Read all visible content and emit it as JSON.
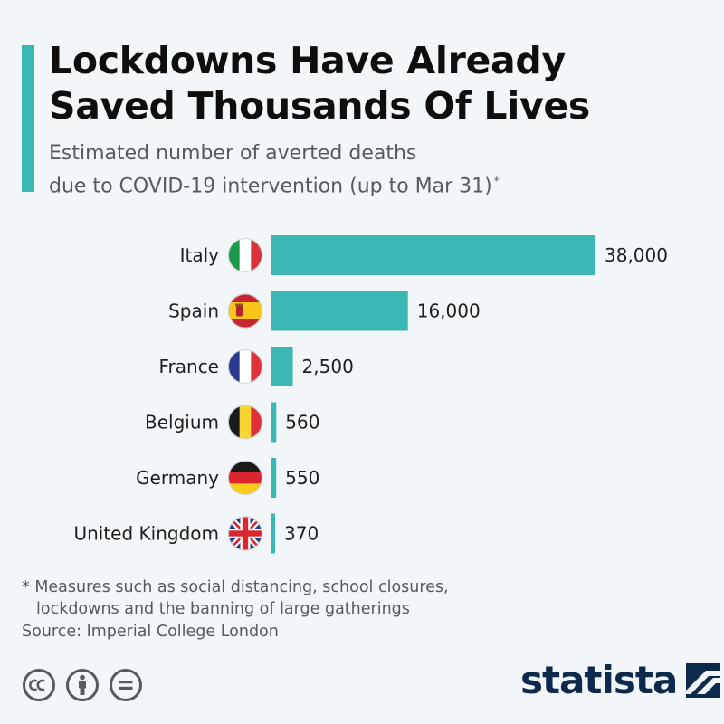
{
  "header": {
    "title_line1": "Lockdowns Have Already",
    "title_line2": "Saved Thousands Of Lives",
    "subtitle_line1": "Estimated number of averted deaths",
    "subtitle_line2": "due to COVID-19 intervention (up to Mar 31)",
    "subtitle_mark": "*"
  },
  "chart_data": {
    "type": "bar",
    "orientation": "horizontal",
    "categories": [
      "Italy",
      "Spain",
      "France",
      "Belgium",
      "Germany",
      "United Kingdom"
    ],
    "values": [
      38000,
      16000,
      2500,
      560,
      550,
      370
    ],
    "value_labels": [
      "38,000",
      "16,000",
      "2,500",
      "560",
      "550",
      "370"
    ],
    "icons": [
      "italy-flag-icon",
      "spain-flag-icon",
      "france-flag-icon",
      "belgium-flag-icon",
      "germany-flag-icon",
      "uk-flag-icon"
    ],
    "xlim": [
      0,
      38000
    ],
    "grid": false,
    "bar_color": "#3cb8b4"
  },
  "footer": {
    "footnote_line1": "* Measures such as social distancing, school closures,",
    "footnote_line2": "lockdowns and the banning of large gatherings",
    "source": "Source: Imperial College London",
    "brand": "statista",
    "brand_color": "#0d2a4c",
    "license_icons": [
      "creative-commons-icon",
      "attribution-icon",
      "no-derivatives-icon"
    ]
  }
}
